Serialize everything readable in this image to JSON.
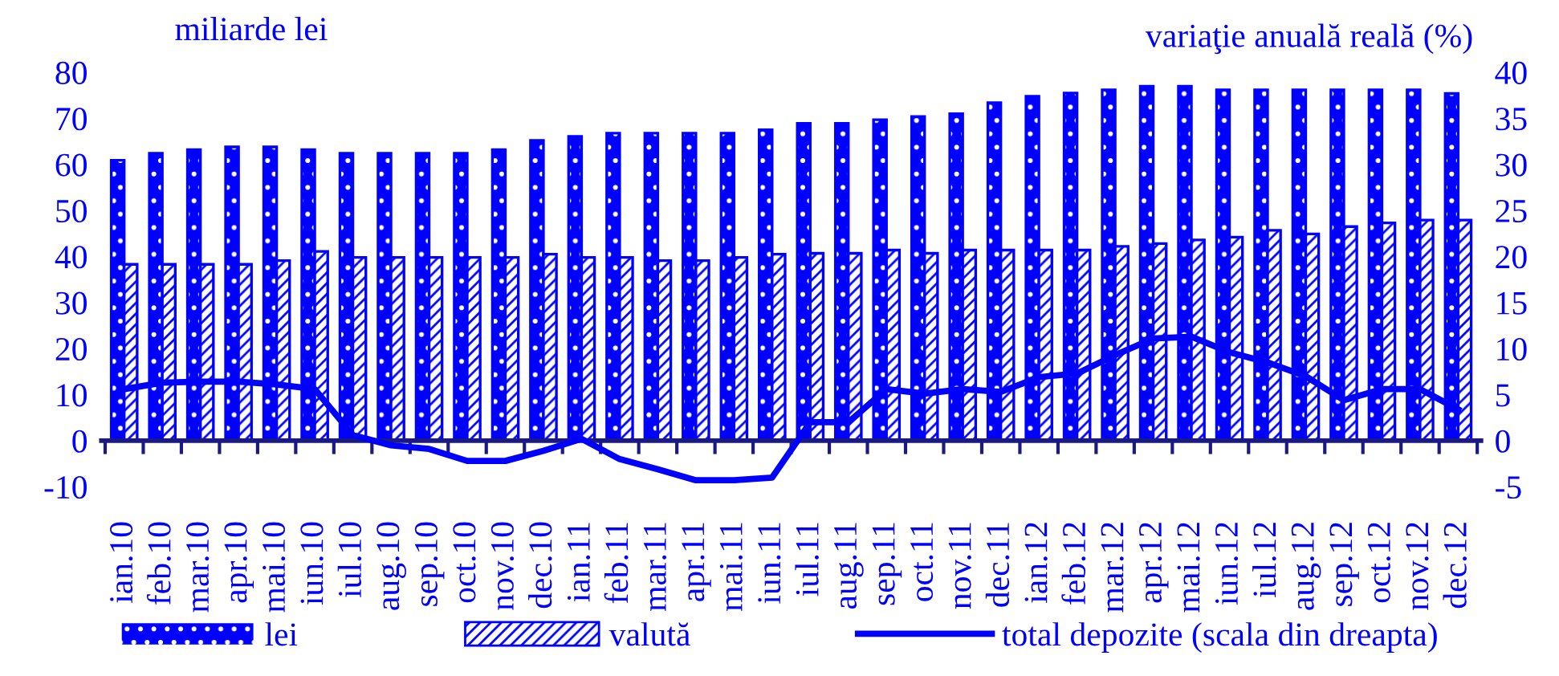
{
  "chart_data": {
    "type": "bar",
    "ylabel": "miliarde lei",
    "y2label": "variaţie anuală reală (%)",
    "categories": [
      "ian.10",
      "feb.10",
      "mar.10",
      "apr.10",
      "mai.10",
      "iun.10",
      "iul.10",
      "aug.10",
      "sep.10",
      "oct.10",
      "nov.10",
      "dec.10",
      "ian.11",
      "feb.11",
      "mar.11",
      "apr.11",
      "mai.11",
      "iun.11",
      "iul.11",
      "aug.11",
      "sep.11",
      "oct.11",
      "nov.11",
      "dec.11",
      "ian.12",
      "feb.12",
      "mar.12",
      "apr.12",
      "mai.12",
      "iun.12",
      "iul.12",
      "aug.12",
      "sep.12",
      "oct.12",
      "nov.12",
      "dec.12"
    ],
    "series": [
      {
        "name": "lei",
        "color": "#0000ff",
        "values": [
          60.9,
          62.4,
          63.2,
          63.8,
          63.8,
          63.2,
          62.4,
          62.4,
          62.4,
          62.4,
          63.2,
          65.2,
          66.1,
          66.8,
          66.8,
          66.8,
          66.8,
          67.5,
          68.9,
          68.9,
          69.7,
          70.4,
          71.0,
          73.4,
          74.8,
          75.5,
          76.2,
          77.0,
          77.0,
          76.2,
          76.2,
          76.2,
          76.2,
          76.2,
          76.2,
          75.4
        ]
      },
      {
        "name": "valută",
        "color": "#0000ff",
        "values": [
          38.3,
          38.3,
          38.3,
          38.3,
          39.1,
          41.1,
          39.8,
          39.8,
          39.8,
          39.8,
          39.8,
          40.5,
          39.8,
          39.8,
          39.1,
          39.1,
          39.8,
          40.5,
          40.7,
          40.7,
          41.4,
          40.7,
          41.4,
          41.4,
          41.4,
          41.4,
          42.2,
          42.8,
          43.6,
          44.2,
          45.7,
          44.9,
          46.5,
          47.3,
          47.9,
          47.9
        ]
      },
      {
        "name": "total depozite (scala din dreapta)",
        "type": "line",
        "axis": "y2",
        "color": "#0000ff",
        "values": [
          5.6,
          6.3,
          6.4,
          6.4,
          6.1,
          5.6,
          0.6,
          -0.5,
          -0.9,
          -2.2,
          -2.2,
          -1.1,
          0.2,
          -2.0,
          -3.1,
          -4.3,
          -4.3,
          -4.0,
          2.0,
          2.0,
          5.6,
          5.1,
          5.6,
          5.3,
          6.9,
          7.3,
          9.3,
          11.1,
          11.3,
          9.6,
          8.5,
          7.0,
          4.4,
          5.6,
          5.6,
          3.4
        ]
      }
    ],
    "ylim": [
      -10,
      80
    ],
    "yticks": [
      -10,
      0,
      10,
      20,
      30,
      40,
      50,
      60,
      70,
      80
    ],
    "y2lim": [
      -5,
      40
    ],
    "y2ticks": [
      -5,
      0,
      5,
      10,
      15,
      20,
      25,
      30,
      35,
      40
    ],
    "grid": false,
    "legend": "bottom",
    "marker": "none",
    "line_style": "solid"
  }
}
